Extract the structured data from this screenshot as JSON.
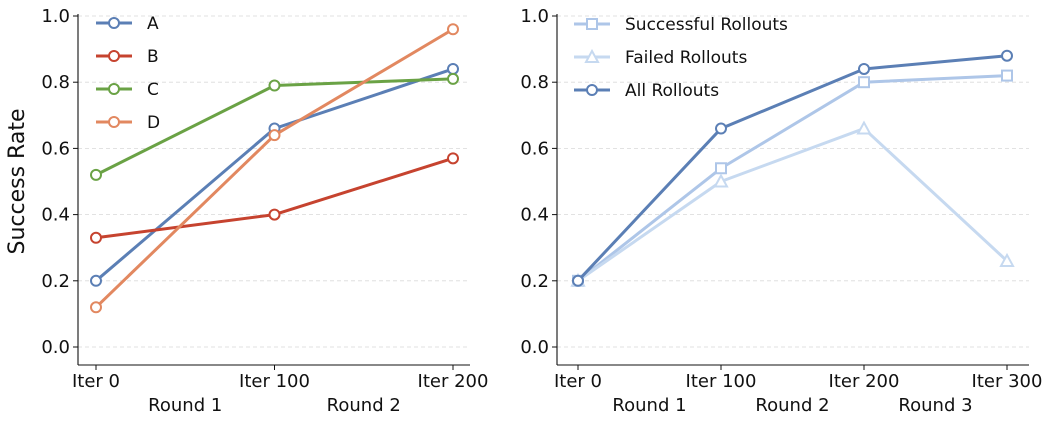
{
  "chart_data": [
    {
      "type": "line",
      "ylabel": "Success Rate",
      "ylim": [
        0.0,
        1.0
      ],
      "yticks": [
        "0.0",
        "0.2",
        "0.4",
        "0.6",
        "0.8",
        "1.0"
      ],
      "categories": [
        "Iter 0",
        "Iter 100",
        "Iter 200"
      ],
      "rounds": [
        "Round 1",
        "Round 2"
      ],
      "grid": "horizontal-dashed",
      "legend_position": "top-left",
      "series": [
        {
          "name": "A",
          "color": "#5b7fb5",
          "marker": "circle",
          "values": [
            0.2,
            0.66,
            0.84
          ]
        },
        {
          "name": "B",
          "color": "#c6432f",
          "marker": "circle",
          "values": [
            0.33,
            0.4,
            0.57
          ]
        },
        {
          "name": "C",
          "color": "#6aa245",
          "marker": "circle",
          "values": [
            0.52,
            0.79,
            0.81
          ]
        },
        {
          "name": "D",
          "color": "#e28860",
          "marker": "circle",
          "values": [
            0.12,
            0.64,
            0.96
          ]
        }
      ]
    },
    {
      "type": "line",
      "ylabel": "",
      "ylim": [
        0.0,
        1.0
      ],
      "yticks": [
        "0.0",
        "0.2",
        "0.4",
        "0.6",
        "0.8",
        "1.0"
      ],
      "categories": [
        "Iter 0",
        "Iter 100",
        "Iter 200",
        "Iter 300"
      ],
      "rounds": [
        "Round 1",
        "Round 2",
        "Round 3"
      ],
      "grid": "horizontal-dashed",
      "legend_position": "top-left",
      "series": [
        {
          "name": "Successful Rollouts",
          "color": "#aec6e8",
          "marker": "square",
          "values": [
            0.2,
            0.54,
            0.8,
            0.82
          ]
        },
        {
          "name": "Failed Rollouts",
          "color": "#c6d9f0",
          "marker": "triangle",
          "values": [
            0.2,
            0.5,
            0.66,
            0.26
          ]
        },
        {
          "name": "All Rollouts",
          "color": "#5b7fb5",
          "marker": "circle",
          "values": [
            0.2,
            0.66,
            0.84,
            0.88
          ]
        }
      ]
    }
  ]
}
